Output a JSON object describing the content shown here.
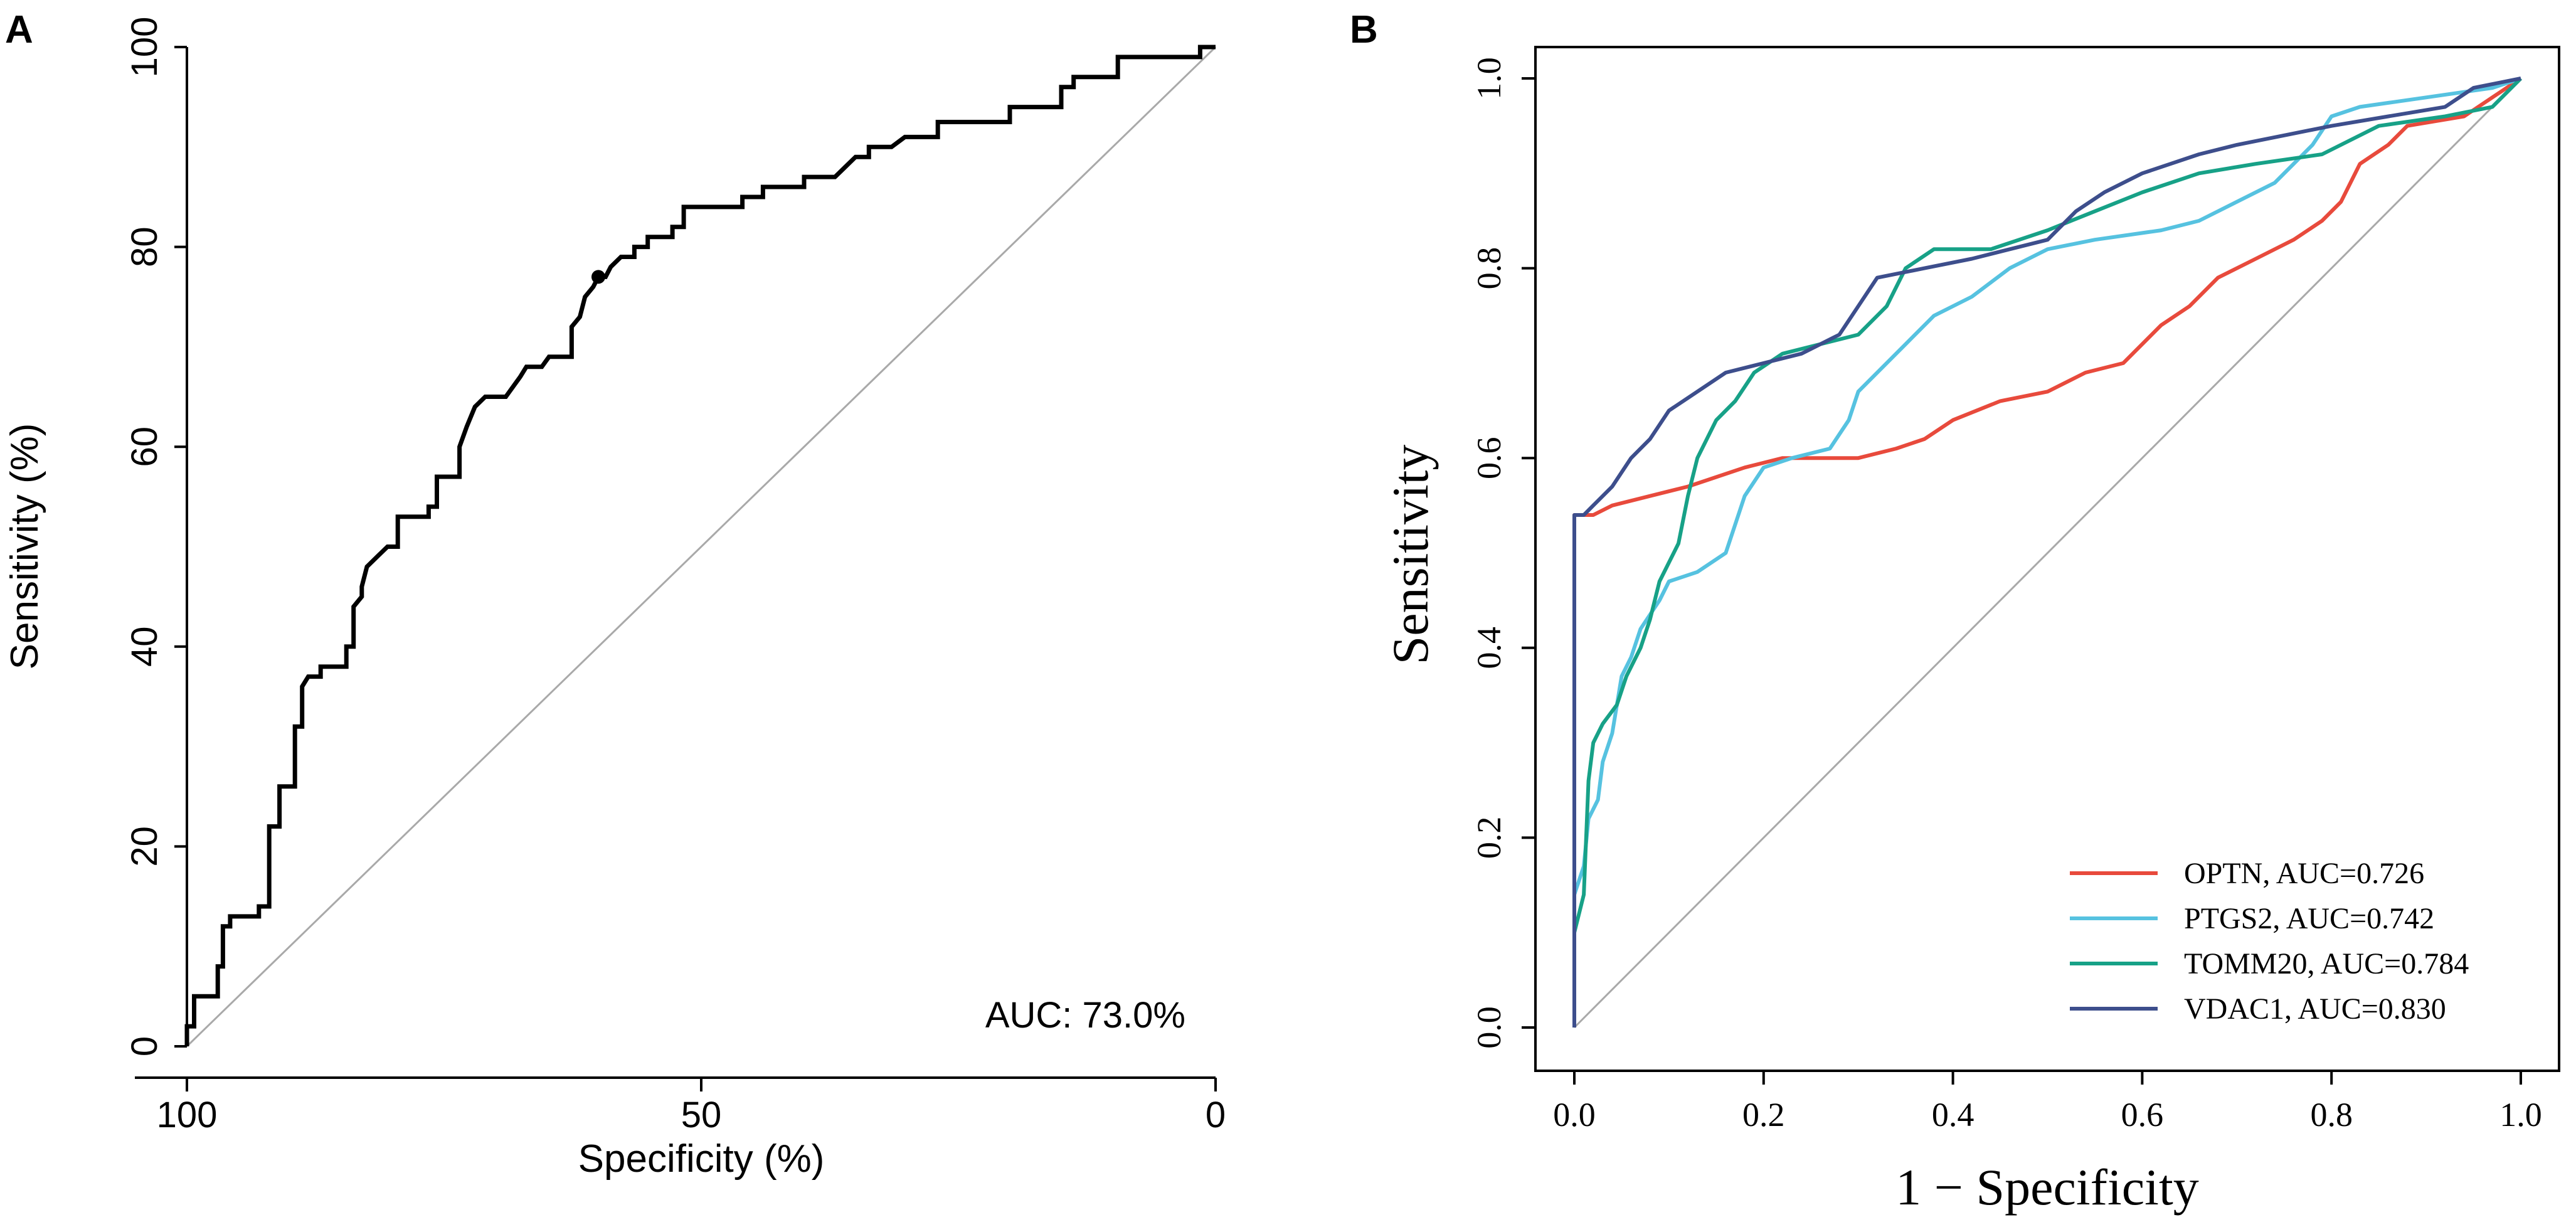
{
  "chart_data": [
    {
      "type": "line",
      "panel": "A",
      "title": "",
      "xlabel": "Specificity (%)",
      "ylabel": "Sensitivity (%)",
      "xlim": [
        100,
        0
      ],
      "ylim": [
        0,
        100
      ],
      "xticks": [
        100,
        50,
        0
      ],
      "yticks": [
        0,
        20,
        40,
        60,
        80,
        100
      ],
      "diagonal": {
        "from": [
          100,
          0
        ],
        "to": [
          0,
          100
        ]
      },
      "auc_label": "AUC: 73.0%",
      "threshold_point": {
        "x": 60.0,
        "y": 77.0
      },
      "series": [
        {
          "name": "ROC",
          "color": "#000000",
          "points": [
            [
              100,
              0
            ],
            [
              100,
              2
            ],
            [
              99.3,
              2
            ],
            [
              99.3,
              5
            ],
            [
              97,
              5
            ],
            [
              97,
              8
            ],
            [
              96.5,
              8
            ],
            [
              96.5,
              12
            ],
            [
              95.8,
              12
            ],
            [
              95.8,
              13
            ],
            [
              93,
              13
            ],
            [
              93,
              14
            ],
            [
              92,
              14
            ],
            [
              92,
              22
            ],
            [
              91,
              22
            ],
            [
              91,
              26
            ],
            [
              89.5,
              26
            ],
            [
              89.5,
              32
            ],
            [
              88.8,
              32
            ],
            [
              88.8,
              36
            ],
            [
              88.2,
              37
            ],
            [
              87,
              37
            ],
            [
              87,
              38
            ],
            [
              84.5,
              38
            ],
            [
              84.5,
              40
            ],
            [
              83.8,
              40
            ],
            [
              83.8,
              44
            ],
            [
              83,
              45
            ],
            [
              83,
              46
            ],
            [
              82.5,
              48
            ],
            [
              81.5,
              49
            ],
            [
              80.5,
              50
            ],
            [
              79.5,
              50
            ],
            [
              79.5,
              53
            ],
            [
              76.5,
              53
            ],
            [
              76.5,
              54
            ],
            [
              75.7,
              54
            ],
            [
              75.7,
              57
            ],
            [
              73.5,
              57
            ],
            [
              73.5,
              60
            ],
            [
              72.8,
              62
            ],
            [
              72,
              64
            ],
            [
              71,
              65
            ],
            [
              69,
              65
            ],
            [
              68.3,
              66
            ],
            [
              67.6,
              67
            ],
            [
              67,
              68
            ],
            [
              65.5,
              68
            ],
            [
              64.8,
              69
            ],
            [
              62.6,
              69
            ],
            [
              62.6,
              72
            ],
            [
              61.8,
              73
            ],
            [
              61.3,
              75
            ],
            [
              60.5,
              76
            ],
            [
              60,
              77
            ],
            [
              59.3,
              77
            ],
            [
              58.8,
              78
            ],
            [
              57.8,
              79
            ],
            [
              56.5,
              79
            ],
            [
              56.5,
              80
            ],
            [
              55.2,
              80
            ],
            [
              55.2,
              81
            ],
            [
              52.8,
              81
            ],
            [
              52.8,
              82
            ],
            [
              51.7,
              82
            ],
            [
              51.7,
              84
            ],
            [
              46,
              84
            ],
            [
              46,
              85
            ],
            [
              44,
              85
            ],
            [
              44,
              86
            ],
            [
              40,
              86
            ],
            [
              40,
              87
            ],
            [
              37,
              87
            ],
            [
              36,
              88
            ],
            [
              35,
              89
            ],
            [
              33.7,
              89
            ],
            [
              33.7,
              90
            ],
            [
              31.5,
              90
            ],
            [
              30.2,
              91
            ],
            [
              27,
              91
            ],
            [
              27,
              92.5
            ],
            [
              20,
              92.5
            ],
            [
              20,
              94
            ],
            [
              15,
              94
            ],
            [
              15,
              96
            ],
            [
              13.8,
              96
            ],
            [
              13.8,
              97
            ],
            [
              9.5,
              97
            ],
            [
              9.5,
              99
            ],
            [
              1.5,
              99
            ],
            [
              1.5,
              100
            ],
            [
              0,
              100
            ]
          ]
        }
      ]
    },
    {
      "type": "line",
      "panel": "B",
      "title": "",
      "xlabel": "1 − Specificity",
      "ylabel": "Sensitivity",
      "xlim": [
        0,
        1
      ],
      "ylim": [
        0,
        1
      ],
      "xticks": [
        "0.0",
        "0.2",
        "0.4",
        "0.6",
        "0.8",
        "1.0"
      ],
      "yticks": [
        "0.0",
        "0.2",
        "0.4",
        "0.6",
        "0.8",
        "1.0"
      ],
      "diagonal": {
        "from": [
          0,
          0
        ],
        "to": [
          1,
          1
        ]
      },
      "legend_position": "bottom-right",
      "series": [
        {
          "name": "OPTN, AUC=0.726",
          "color": "#e84a3c",
          "points": [
            [
              0,
              0
            ],
            [
              0,
              0.54
            ],
            [
              0.02,
              0.54
            ],
            [
              0.04,
              0.55
            ],
            [
              0.08,
              0.56
            ],
            [
              0.12,
              0.57
            ],
            [
              0.15,
              0.58
            ],
            [
              0.18,
              0.59
            ],
            [
              0.22,
              0.6
            ],
            [
              0.3,
              0.6
            ],
            [
              0.34,
              0.61
            ],
            [
              0.37,
              0.62
            ],
            [
              0.4,
              0.64
            ],
            [
              0.45,
              0.66
            ],
            [
              0.5,
              0.67
            ],
            [
              0.54,
              0.69
            ],
            [
              0.58,
              0.7
            ],
            [
              0.6,
              0.72
            ],
            [
              0.62,
              0.74
            ],
            [
              0.65,
              0.76
            ],
            [
              0.68,
              0.79
            ],
            [
              0.72,
              0.81
            ],
            [
              0.76,
              0.83
            ],
            [
              0.79,
              0.85
            ],
            [
              0.81,
              0.87
            ],
            [
              0.83,
              0.91
            ],
            [
              0.86,
              0.93
            ],
            [
              0.88,
              0.95
            ],
            [
              0.94,
              0.96
            ],
            [
              0.97,
              0.98
            ],
            [
              1,
              1
            ]
          ]
        },
        {
          "name": "PTGS2, AUC=0.742",
          "color": "#56c2e0",
          "points": [
            [
              0,
              0
            ],
            [
              0,
              0.14
            ],
            [
              0.01,
              0.17
            ],
            [
              0.015,
              0.22
            ],
            [
              0.025,
              0.24
            ],
            [
              0.03,
              0.28
            ],
            [
              0.04,
              0.31
            ],
            [
              0.05,
              0.37
            ],
            [
              0.06,
              0.39
            ],
            [
              0.07,
              0.42
            ],
            [
              0.09,
              0.45
            ],
            [
              0.1,
              0.47
            ],
            [
              0.13,
              0.48
            ],
            [
              0.16,
              0.5
            ],
            [
              0.18,
              0.56
            ],
            [
              0.2,
              0.59
            ],
            [
              0.23,
              0.6
            ],
            [
              0.27,
              0.61
            ],
            [
              0.29,
              0.64
            ],
            [
              0.3,
              0.67
            ],
            [
              0.32,
              0.69
            ],
            [
              0.35,
              0.72
            ],
            [
              0.38,
              0.75
            ],
            [
              0.42,
              0.77
            ],
            [
              0.46,
              0.8
            ],
            [
              0.5,
              0.82
            ],
            [
              0.55,
              0.83
            ],
            [
              0.62,
              0.84
            ],
            [
              0.66,
              0.85
            ],
            [
              0.7,
              0.87
            ],
            [
              0.74,
              0.89
            ],
            [
              0.76,
              0.91
            ],
            [
              0.78,
              0.93
            ],
            [
              0.8,
              0.96
            ],
            [
              0.83,
              0.97
            ],
            [
              0.9,
              0.98
            ],
            [
              0.97,
              0.99
            ],
            [
              1,
              1
            ]
          ]
        },
        {
          "name": "TOMM20, AUC=0.784",
          "color": "#17a187",
          "points": [
            [
              0,
              0
            ],
            [
              0,
              0.1
            ],
            [
              0.01,
              0.14
            ],
            [
              0.015,
              0.26
            ],
            [
              0.02,
              0.3
            ],
            [
              0.03,
              0.32
            ],
            [
              0.045,
              0.34
            ],
            [
              0.055,
              0.37
            ],
            [
              0.07,
              0.4
            ],
            [
              0.08,
              0.43
            ],
            [
              0.09,
              0.47
            ],
            [
              0.11,
              0.51
            ],
            [
              0.12,
              0.56
            ],
            [
              0.13,
              0.6
            ],
            [
              0.15,
              0.64
            ],
            [
              0.17,
              0.66
            ],
            [
              0.19,
              0.69
            ],
            [
              0.22,
              0.71
            ],
            [
              0.26,
              0.72
            ],
            [
              0.3,
              0.73
            ],
            [
              0.33,
              0.76
            ],
            [
              0.35,
              0.8
            ],
            [
              0.38,
              0.82
            ],
            [
              0.44,
              0.82
            ],
            [
              0.5,
              0.84
            ],
            [
              0.55,
              0.86
            ],
            [
              0.6,
              0.88
            ],
            [
              0.66,
              0.9
            ],
            [
              0.72,
              0.91
            ],
            [
              0.79,
              0.92
            ],
            [
              0.85,
              0.95
            ],
            [
              0.92,
              0.96
            ],
            [
              0.97,
              0.97
            ],
            [
              1,
              1
            ]
          ]
        },
        {
          "name": "VDAC1, AUC=0.830",
          "color": "#3d4e8c",
          "points": [
            [
              0,
              0
            ],
            [
              0,
              0.54
            ],
            [
              0.01,
              0.54
            ],
            [
              0.02,
              0.55
            ],
            [
              0.04,
              0.57
            ],
            [
              0.06,
              0.6
            ],
            [
              0.08,
              0.62
            ],
            [
              0.1,
              0.65
            ],
            [
              0.13,
              0.67
            ],
            [
              0.16,
              0.69
            ],
            [
              0.2,
              0.7
            ],
            [
              0.24,
              0.71
            ],
            [
              0.28,
              0.73
            ],
            [
              0.3,
              0.76
            ],
            [
              0.32,
              0.79
            ],
            [
              0.37,
              0.8
            ],
            [
              0.42,
              0.81
            ],
            [
              0.46,
              0.82
            ],
            [
              0.5,
              0.83
            ],
            [
              0.53,
              0.86
            ],
            [
              0.56,
              0.88
            ],
            [
              0.6,
              0.9
            ],
            [
              0.66,
              0.92
            ],
            [
              0.7,
              0.93
            ],
            [
              0.75,
              0.94
            ],
            [
              0.8,
              0.95
            ],
            [
              0.86,
              0.96
            ],
            [
              0.92,
              0.97
            ],
            [
              0.95,
              0.99
            ],
            [
              1,
              1
            ]
          ]
        }
      ]
    }
  ],
  "panels": {
    "a": {
      "letter": "A"
    },
    "b": {
      "letter": "B"
    }
  }
}
